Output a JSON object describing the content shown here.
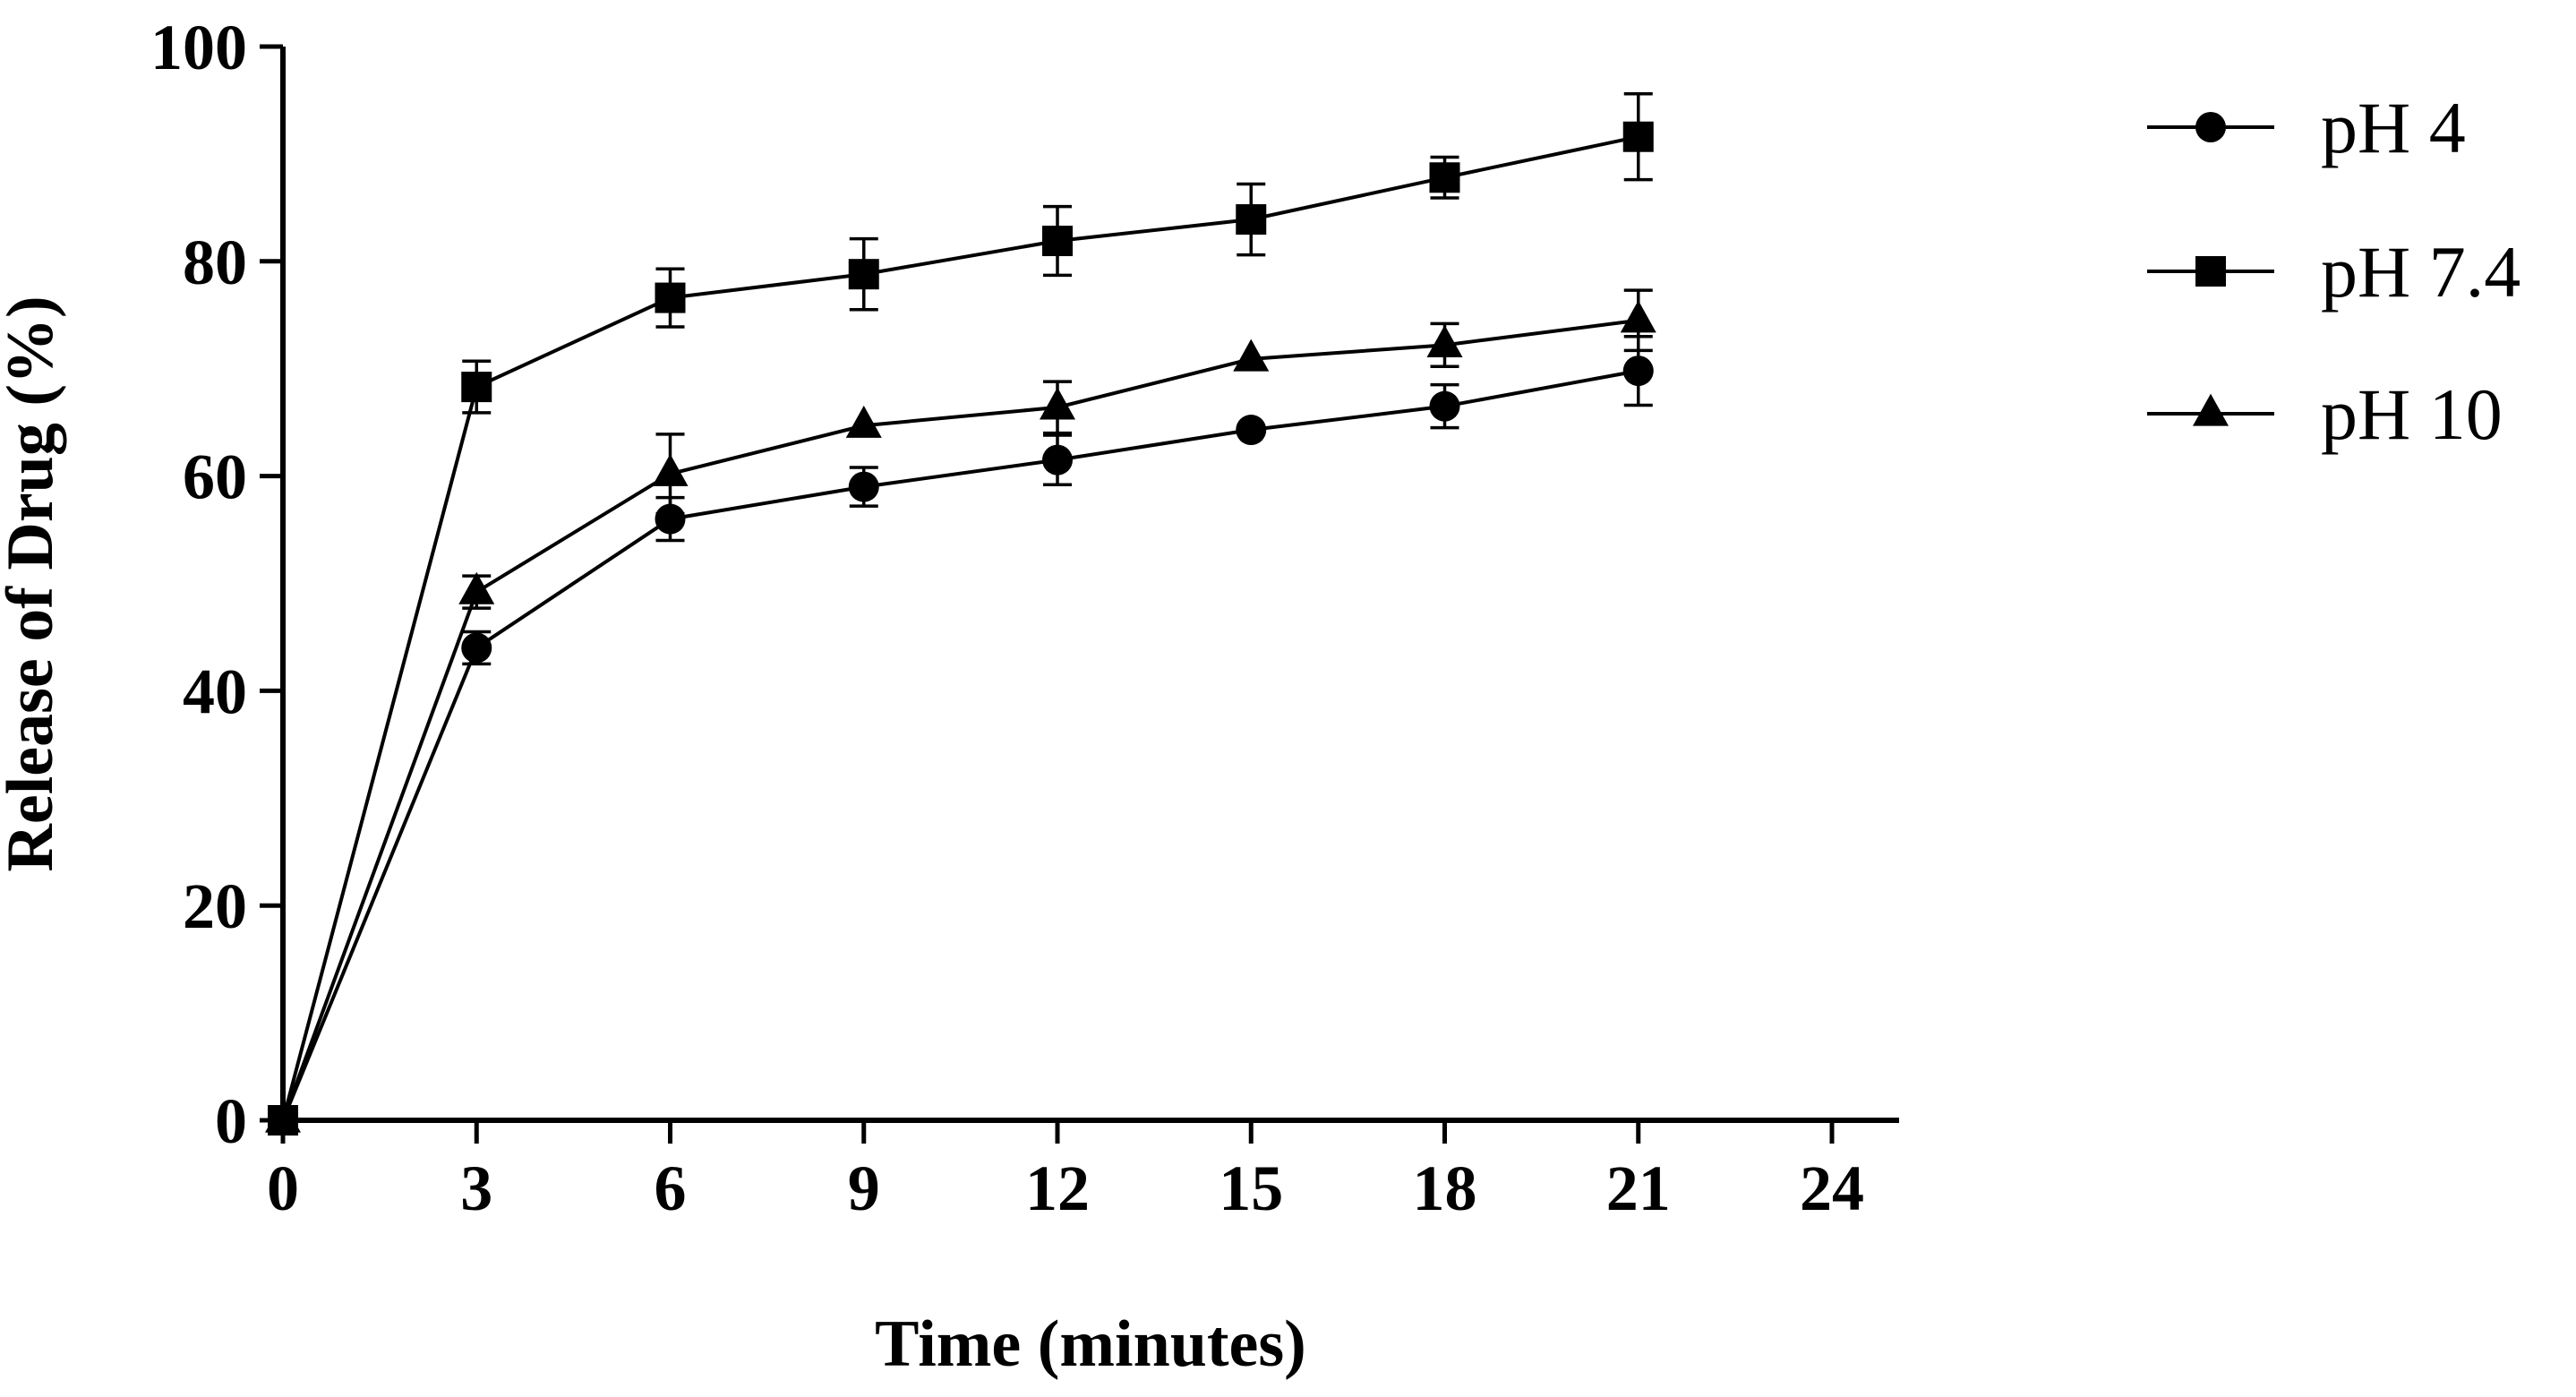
{
  "chart_data": {
    "type": "line",
    "title": "",
    "xlabel": "Time (minutes)",
    "ylabel": "Release of Drug (%)",
    "xlim": [
      0,
      24
    ],
    "ylim": [
      0,
      100
    ],
    "x_ticks": [
      0,
      3,
      6,
      9,
      12,
      15,
      18,
      21,
      24
    ],
    "y_ticks": [
      0,
      20,
      40,
      60,
      80,
      100
    ],
    "grid": false,
    "legend_position": "top-right",
    "x": [
      0,
      3,
      6,
      9,
      12,
      15,
      18,
      21
    ],
    "series": [
      {
        "name": "pH 4",
        "marker": "circle",
        "values": [
          0,
          44,
          56,
          59,
          61.5,
          64.3,
          66.5,
          69.8
        ],
        "errors": [
          0,
          1.5,
          2,
          1.8,
          2.3,
          0,
          2,
          3.2
        ]
      },
      {
        "name": "pH 7.4",
        "marker": "square",
        "values": [
          0,
          68.3,
          76.6,
          78.8,
          81.9,
          83.9,
          87.8,
          91.6
        ],
        "errors": [
          0,
          2.4,
          2.7,
          3.3,
          3.2,
          3.3,
          1.9,
          4
        ]
      },
      {
        "name": "pH 10",
        "marker": "triangle",
        "values": [
          0,
          49.2,
          60.2,
          64.7,
          66.4,
          70.9,
          72.2,
          74.5
        ],
        "errors": [
          0,
          1.5,
          3.7,
          0,
          2.4,
          0,
          2,
          2.8
        ]
      }
    ],
    "colors": {
      "ink": "#000000",
      "background": "#ffffff"
    }
  }
}
